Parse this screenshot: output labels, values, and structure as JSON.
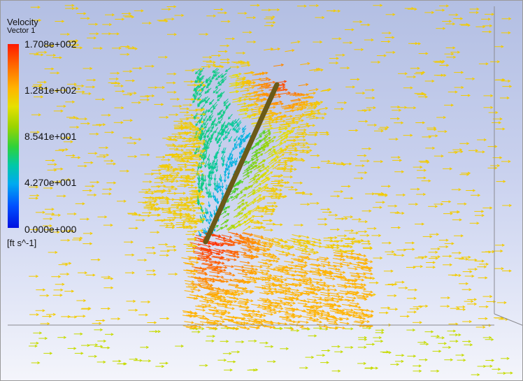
{
  "legend": {
    "title": "Velocity",
    "subtitle": "Vector 1",
    "ticks": [
      "1.708e+002",
      "1.281e+002",
      "8.541e+001",
      "4.270e+001",
      "0.000e+000"
    ],
    "units": "[ft s^-1]"
  },
  "colors": {
    "background_top": "#b3bfe3",
    "background_bottom": "#f4f5fb",
    "plate": "#6a5a18",
    "scale": [
      "#0010e0",
      "#0050ff",
      "#00aaf0",
      "#00c8a8",
      "#2ed23c",
      "#9ad400",
      "#e6e000",
      "#ffb400",
      "#ff6a00",
      "#ff1a00"
    ]
  }
}
